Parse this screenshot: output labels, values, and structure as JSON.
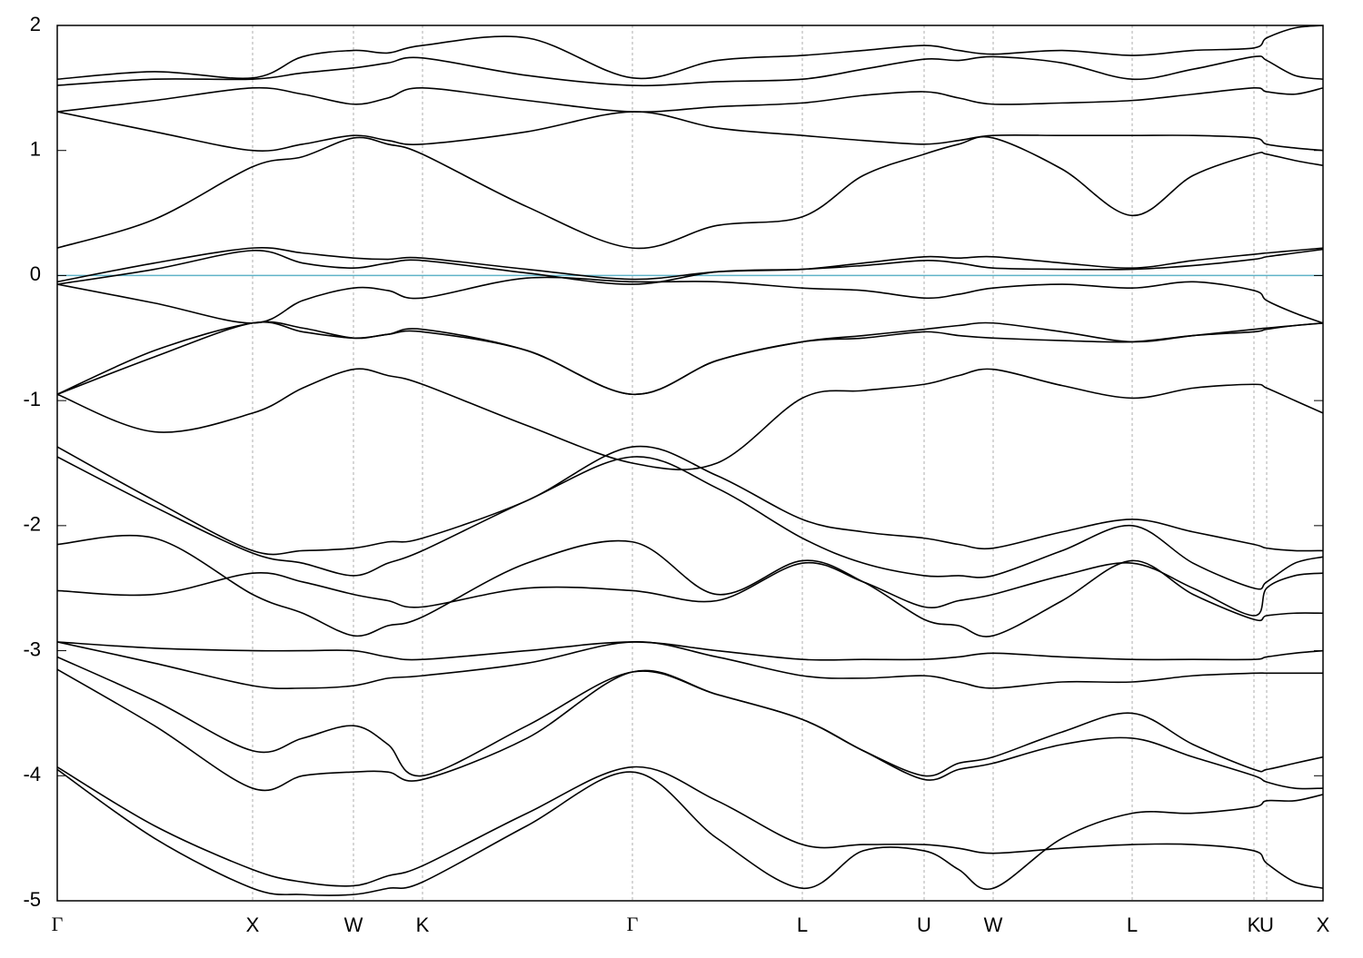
{
  "chart_data": {
    "type": "line",
    "color": "#000000",
    "grid": "x",
    "reference_line": {
      "value": 0,
      "color": "#5fb3c8"
    },
    "xlim": [
      0,
      13.93
    ],
    "ylim": [
      -5,
      2
    ],
    "yticks": [
      2,
      1,
      0,
      -1,
      -2,
      -3,
      -4,
      -5
    ],
    "xticks": [
      {
        "value": 0,
        "label": "Γ"
      },
      {
        "value": 2.15,
        "label": "X"
      },
      {
        "value": 3.26,
        "label": "W"
      },
      {
        "value": 4.02,
        "label": "K"
      },
      {
        "value": 6.33,
        "label": "Γ"
      },
      {
        "value": 8.2,
        "label": "L"
      },
      {
        "value": 9.54,
        "label": "U"
      },
      {
        "value": 10.3,
        "label": "W"
      },
      {
        "value": 11.83,
        "label": "L"
      },
      {
        "value": 13.17,
        "label": "K"
      },
      {
        "value": 13.31,
        "label": "U"
      },
      {
        "value": 13.93,
        "label": "X"
      }
    ],
    "x": [
      0,
      1.07,
      2.15,
      2.7,
      3.26,
      3.64,
      4.02,
      5.17,
      6.33,
      7.26,
      8.2,
      8.87,
      9.54,
      9.92,
      10.3,
      11.06,
      11.83,
      12.5,
      13.17,
      13.31,
      13.62,
      13.93
    ],
    "series": [
      {
        "values": [
          0.22,
          0.45,
          0.87,
          0.95,
          1.1,
          1.05,
          0.97,
          0.55,
          0.22,
          0.4,
          0.47,
          0.8,
          0.97,
          1.05,
          1.1,
          0.85,
          0.48,
          0.8,
          0.97,
          0.97,
          0.92,
          0.88
        ]
      },
      {
        "values": [
          1.31,
          1.15,
          1.0,
          1.05,
          1.12,
          1.08,
          1.05,
          1.15,
          1.31,
          1.18,
          1.12,
          1.08,
          1.05,
          1.08,
          1.12,
          1.12,
          1.12,
          1.12,
          1.1,
          1.05,
          1.02,
          1.0
        ]
      },
      {
        "values": [
          1.31,
          1.4,
          1.5,
          1.45,
          1.37,
          1.42,
          1.5,
          1.4,
          1.31,
          1.35,
          1.38,
          1.44,
          1.47,
          1.42,
          1.37,
          1.38,
          1.4,
          1.45,
          1.5,
          1.47,
          1.45,
          1.5
        ]
      },
      {
        "values": [
          1.52,
          1.57,
          1.57,
          1.62,
          1.66,
          1.7,
          1.74,
          1.6,
          1.52,
          1.55,
          1.57,
          1.65,
          1.73,
          1.72,
          1.75,
          1.7,
          1.57,
          1.65,
          1.75,
          1.72,
          1.6,
          1.57
        ]
      },
      {
        "values": [
          1.57,
          1.63,
          1.58,
          1.75,
          1.8,
          1.78,
          1.84,
          1.9,
          1.58,
          1.72,
          1.76,
          1.8,
          1.84,
          1.8,
          1.77,
          1.8,
          1.76,
          1.8,
          1.82,
          1.9,
          1.98,
          2.0
        ]
      },
      {
        "values": [
          -0.05,
          0.1,
          0.22,
          0.18,
          0.14,
          0.13,
          0.14,
          0.05,
          -0.03,
          0.03,
          0.05,
          0.1,
          0.15,
          0.14,
          0.15,
          0.1,
          0.06,
          0.12,
          0.17,
          0.18,
          0.2,
          0.22
        ]
      },
      {
        "values": [
          -0.07,
          0.05,
          0.2,
          0.1,
          0.06,
          0.1,
          0.12,
          0.02,
          -0.07,
          0.03,
          0.05,
          0.08,
          0.12,
          0.1,
          0.06,
          0.05,
          0.05,
          0.08,
          0.13,
          0.15,
          0.18,
          0.21
        ]
      },
      {
        "values": [
          -0.07,
          -0.22,
          -0.38,
          -0.2,
          -0.1,
          -0.12,
          -0.18,
          -0.02,
          -0.05,
          -0.05,
          -0.1,
          -0.12,
          -0.18,
          -0.15,
          -0.1,
          -0.07,
          -0.1,
          -0.05,
          -0.12,
          -0.2,
          -0.3,
          -0.38
        ]
      },
      {
        "values": [
          -0.95,
          -0.65,
          -0.38,
          -0.45,
          -0.5,
          -0.47,
          -0.43,
          -0.6,
          -0.95,
          -0.68,
          -0.53,
          -0.48,
          -0.43,
          -0.4,
          -0.38,
          -0.45,
          -0.53,
          -0.48,
          -0.43,
          -0.42,
          -0.4,
          -0.38
        ]
      },
      {
        "values": [
          -0.95,
          -0.6,
          -0.38,
          -0.42,
          -0.5,
          -0.47,
          -0.45,
          -0.6,
          -0.95,
          -0.68,
          -0.53,
          -0.5,
          -0.45,
          -0.48,
          -0.5,
          -0.52,
          -0.53,
          -0.48,
          -0.45,
          -0.43,
          -0.4,
          -0.38
        ]
      },
      {
        "values": [
          -0.95,
          -1.25,
          -1.1,
          -0.9,
          -0.75,
          -0.8,
          -0.87,
          -1.2,
          -1.5,
          -1.5,
          -0.98,
          -0.92,
          -0.87,
          -0.8,
          -0.75,
          -0.88,
          -0.98,
          -0.9,
          -0.87,
          -0.9,
          -1.0,
          -1.1
        ]
      },
      {
        "values": [
          -1.37,
          -1.8,
          -2.2,
          -2.2,
          -2.18,
          -2.13,
          -2.1,
          -1.8,
          -1.37,
          -1.6,
          -1.95,
          -2.05,
          -2.1,
          -2.15,
          -2.18,
          -2.05,
          -1.95,
          -2.05,
          -2.15,
          -2.18,
          -2.2,
          -2.2
        ]
      },
      {
        "values": [
          -1.45,
          -1.85,
          -2.22,
          -2.3,
          -2.4,
          -2.3,
          -2.2,
          -1.8,
          -1.45,
          -1.7,
          -2.1,
          -2.3,
          -2.4,
          -2.4,
          -2.4,
          -2.2,
          -2.0,
          -2.3,
          -2.5,
          -2.45,
          -2.3,
          -2.25
        ]
      },
      {
        "values": [
          -2.15,
          -2.1,
          -2.55,
          -2.7,
          -2.88,
          -2.8,
          -2.73,
          -2.3,
          -2.13,
          -2.55,
          -2.28,
          -2.45,
          -2.75,
          -2.8,
          -2.88,
          -2.6,
          -2.28,
          -2.55,
          -2.75,
          -2.72,
          -2.7,
          -2.7
        ]
      },
      {
        "values": [
          -2.52,
          -2.55,
          -2.38,
          -2.45,
          -2.55,
          -2.6,
          -2.65,
          -2.5,
          -2.52,
          -2.6,
          -2.3,
          -2.45,
          -2.65,
          -2.6,
          -2.55,
          -2.4,
          -2.3,
          -2.5,
          -2.72,
          -2.5,
          -2.4,
          -2.38
        ]
      },
      {
        "values": [
          -2.93,
          -2.98,
          -3.0,
          -3.0,
          -3.0,
          -3.05,
          -3.07,
          -3.0,
          -2.93,
          -3.0,
          -3.07,
          -3.07,
          -3.07,
          -3.05,
          -3.02,
          -3.05,
          -3.07,
          -3.07,
          -3.07,
          -3.05,
          -3.02,
          -3.0
        ]
      },
      {
        "values": [
          -2.93,
          -3.1,
          -3.28,
          -3.3,
          -3.28,
          -3.22,
          -3.2,
          -3.1,
          -2.93,
          -3.05,
          -3.2,
          -3.22,
          -3.2,
          -3.25,
          -3.3,
          -3.25,
          -3.25,
          -3.2,
          -3.18,
          -3.18,
          -3.18,
          -3.18
        ]
      },
      {
        "values": [
          -3.05,
          -3.4,
          -3.8,
          -3.7,
          -3.6,
          -3.75,
          -4.0,
          -3.6,
          -3.17,
          -3.35,
          -3.55,
          -3.8,
          -4.0,
          -3.9,
          -3.85,
          -3.65,
          -3.5,
          -3.75,
          -3.95,
          -3.95,
          -3.9,
          -3.85
        ]
      },
      {
        "values": [
          -3.15,
          -3.6,
          -4.1,
          -4.0,
          -3.97,
          -3.97,
          -4.03,
          -3.7,
          -3.17,
          -3.35,
          -3.55,
          -3.8,
          -4.03,
          -3.95,
          -3.9,
          -3.75,
          -3.7,
          -3.85,
          -4.0,
          -4.05,
          -4.1,
          -4.1
        ]
      },
      {
        "values": [
          -3.93,
          -4.4,
          -4.75,
          -4.85,
          -4.88,
          -4.8,
          -4.72,
          -4.3,
          -3.93,
          -4.2,
          -4.55,
          -4.55,
          -4.55,
          -4.58,
          -4.62,
          -4.58,
          -4.55,
          -4.55,
          -4.6,
          -4.7,
          -4.85,
          -4.9
        ]
      },
      {
        "values": [
          -3.95,
          -4.5,
          -4.9,
          -4.95,
          -4.95,
          -4.9,
          -4.85,
          -4.4,
          -3.97,
          -4.5,
          -4.9,
          -4.6,
          -4.6,
          -4.75,
          -4.9,
          -4.5,
          -4.3,
          -4.3,
          -4.25,
          -4.2,
          -4.2,
          -4.15
        ]
      }
    ]
  }
}
